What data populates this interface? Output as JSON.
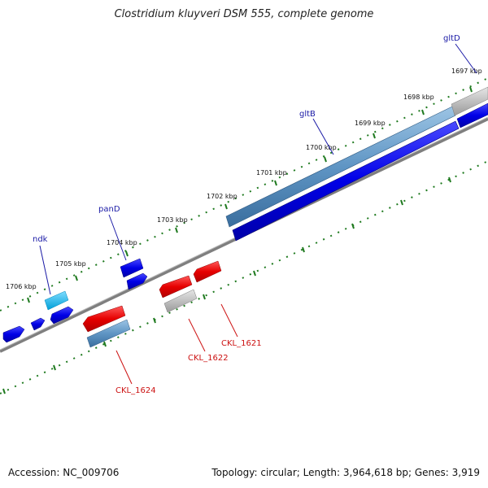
{
  "title": "Clostridium kluyveri DSM 555, complete genome",
  "footer": {
    "accession_label": "Accession: NC_009706",
    "summary": "Topology: circular; Length: 3,964,618 bp; Genes: 3,919"
  },
  "colors": {
    "axis": "#7f7f7f",
    "tick": "#1f7a1f",
    "forward_gene": "#0000e6",
    "reverse_gene": "#e60000",
    "highlight_gene": "#00b4e6",
    "rna_or_pseudo": "#a0a0a0",
    "steel_gene": "#4a86b8",
    "label_blue": "#1a1aa6",
    "label_red": "#cc1111"
  },
  "scale": {
    "unit": "kbp",
    "ticks": [
      {
        "label": "1706 kbp",
        "value": 1706
      },
      {
        "label": "1705 kbp",
        "value": 1705
      },
      {
        "label": "1704 kbp",
        "value": 1704
      },
      {
        "label": "1703 kbp",
        "value": 1703
      },
      {
        "label": "1702 kbp",
        "value": 1702
      },
      {
        "label": "1701 kbp",
        "value": 1701
      },
      {
        "label": "1700 kbp",
        "value": 1700
      },
      {
        "label": "1699 kbp",
        "value": 1699
      },
      {
        "label": "1698 kbp",
        "value": 1698
      },
      {
        "label": "1697 kbp",
        "value": 1697
      }
    ]
  },
  "gene_labels": [
    {
      "text": "ndk",
      "strand": "forward"
    },
    {
      "text": "panD",
      "strand": "forward"
    },
    {
      "text": "gltB",
      "strand": "forward"
    },
    {
      "text": "gltD",
      "strand": "forward"
    },
    {
      "text": "CKL_1624",
      "strand": "reverse"
    },
    {
      "text": "CKL_1622",
      "strand": "reverse"
    },
    {
      "text": "CKL_1621",
      "strand": "reverse"
    }
  ]
}
